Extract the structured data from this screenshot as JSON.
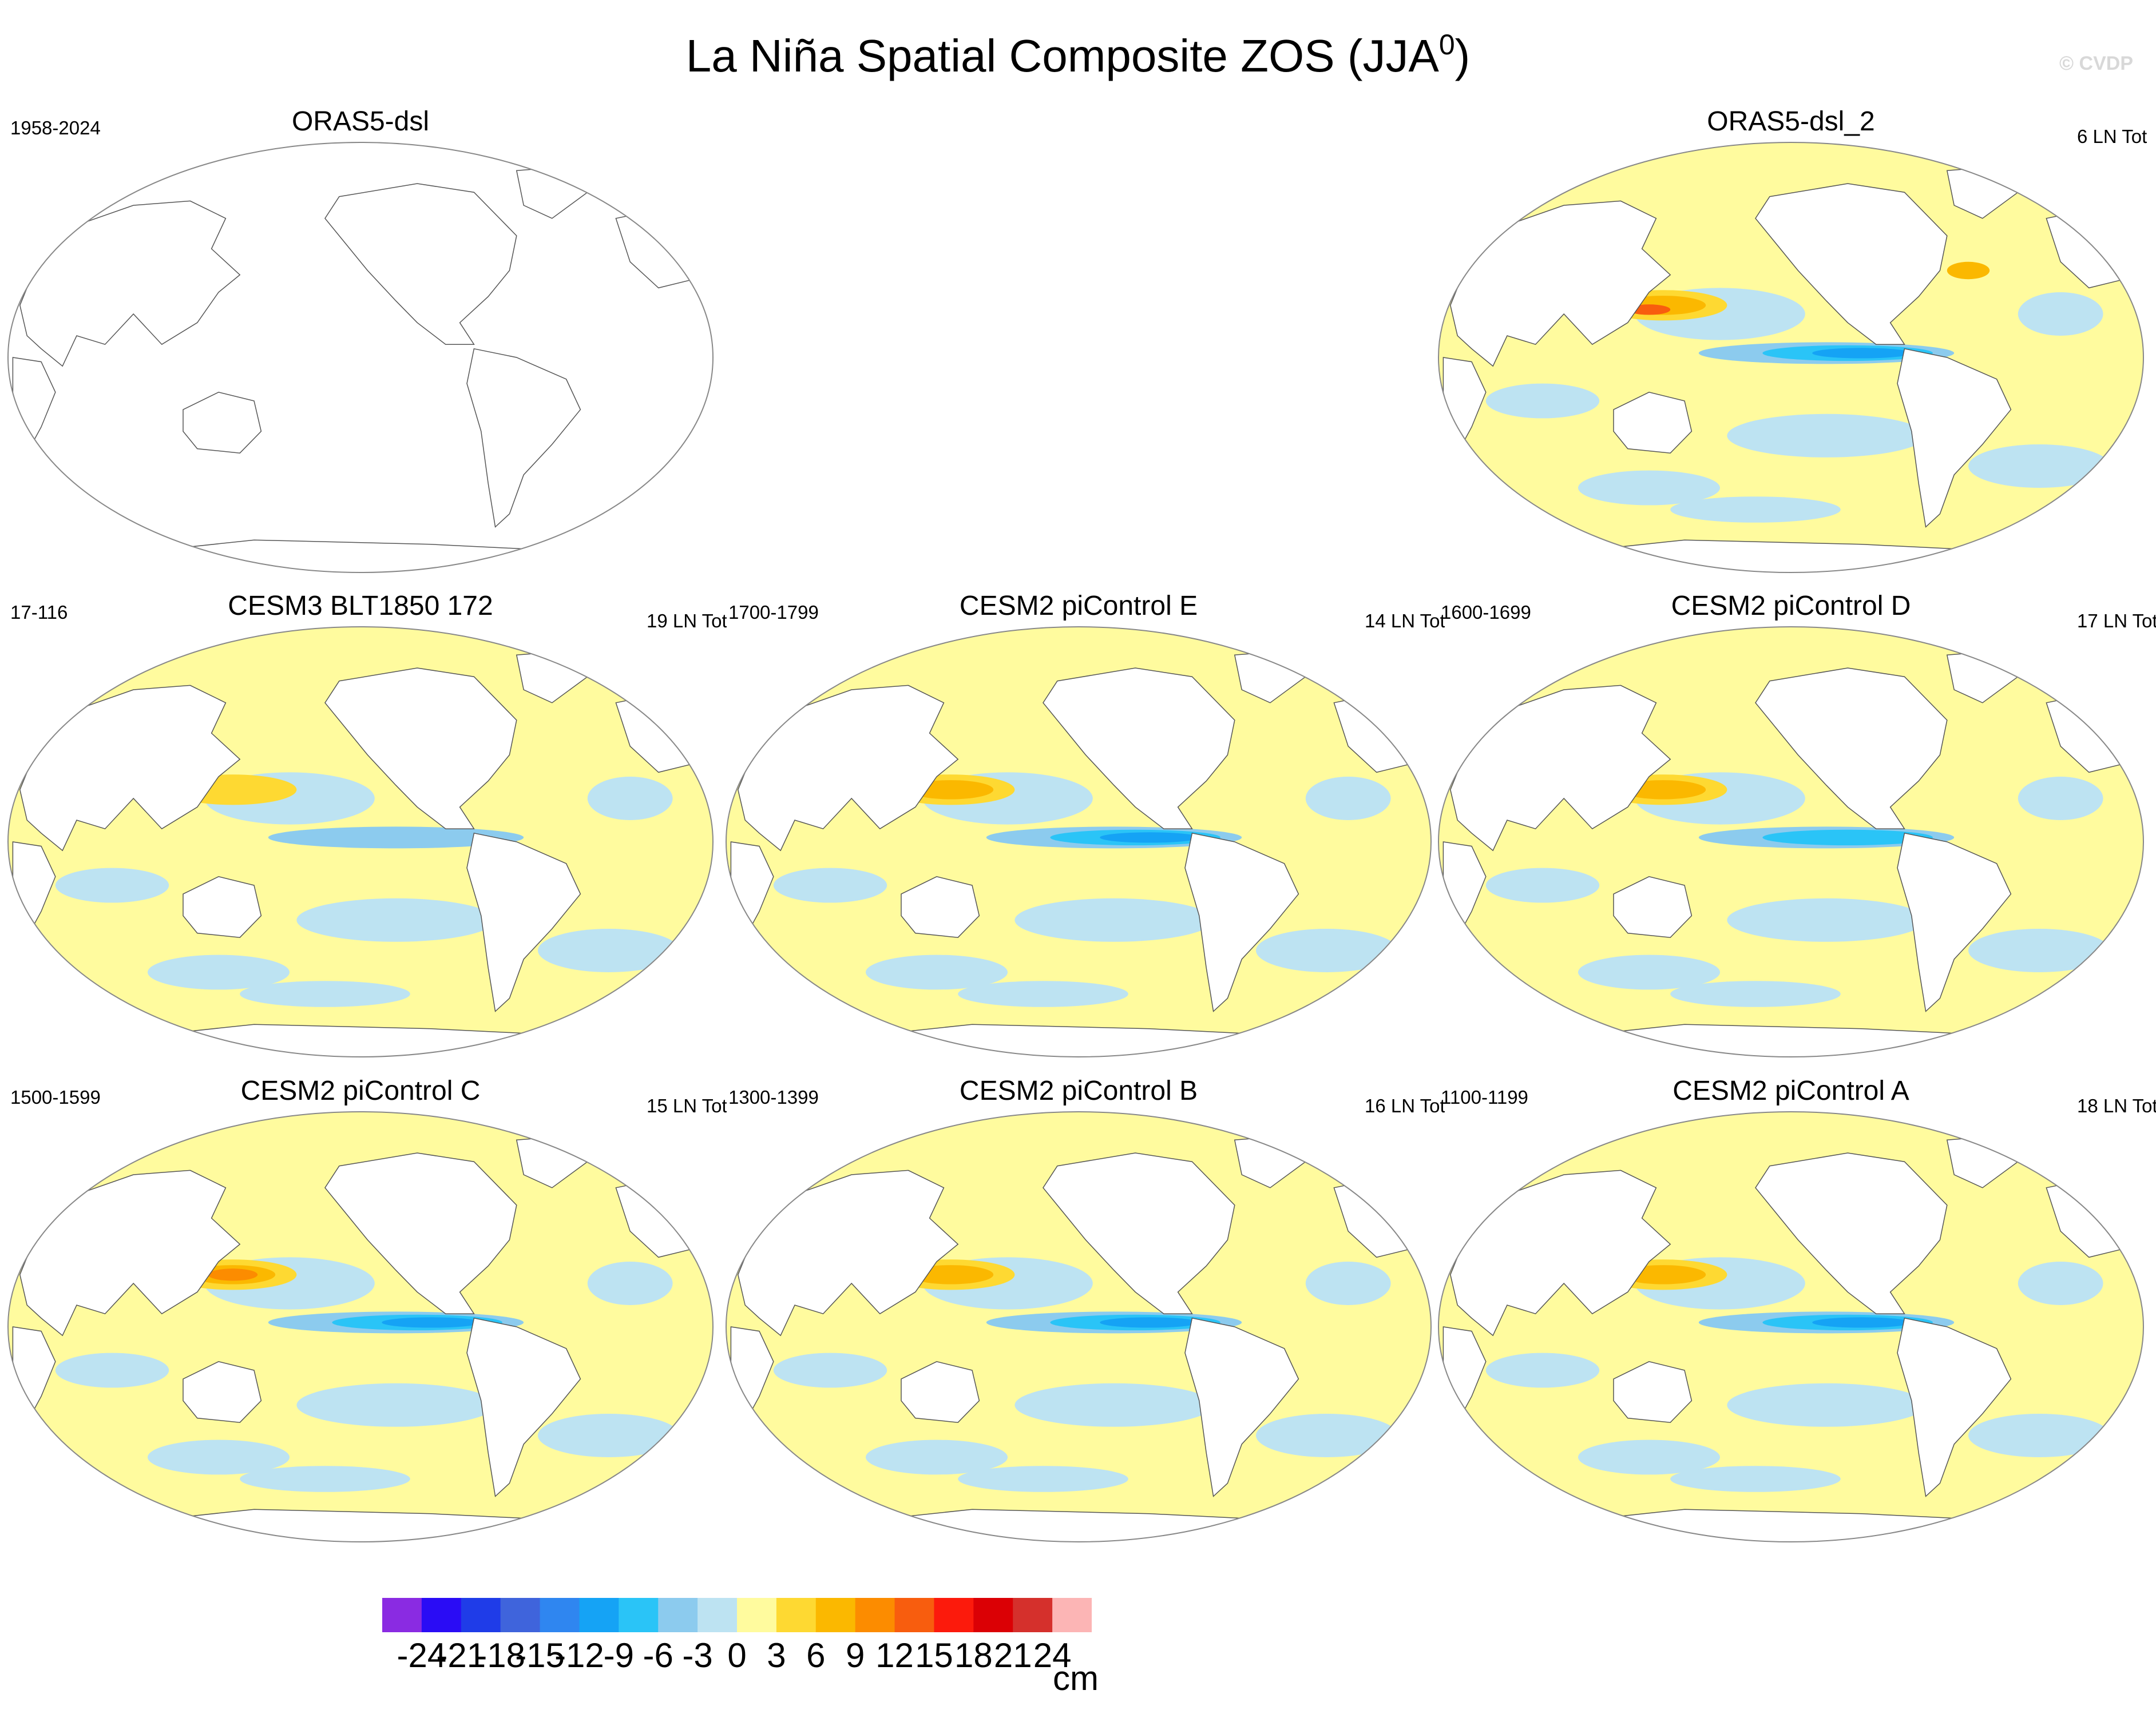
{
  "title": "La Niña Spatial Composite ZOS (JJA",
  "title_sup": "0",
  "title_close": ")",
  "watermark": "© CVDP",
  "panels": [
    {
      "title": "ORAS5-dsl",
      "left": "1958-2024",
      "right": "",
      "empty": true
    },
    {
      "title": "ORAS5-dsl_2",
      "left": "",
      "right": "6 LN Tot",
      "empty": false
    },
    {
      "title": "CESM3 BLT1850 172",
      "left": "17-116",
      "right": "19 LN Tot",
      "empty": false
    },
    {
      "title": "CESM2 piControl E",
      "left": "1700-1799",
      "right": "14 LN Tot",
      "empty": false
    },
    {
      "title": "CESM2 piControl D",
      "left": "1600-1699",
      "right": "17 LN Tot",
      "empty": false
    },
    {
      "title": "CESM2 piControl C",
      "left": "1500-1599",
      "right": "15 LN Tot",
      "empty": false
    },
    {
      "title": "CESM2 piControl B",
      "left": "1300-1399",
      "right": "16 LN Tot",
      "empty": false
    },
    {
      "title": "CESM2 piControl A",
      "left": "1100-1199",
      "right": "18 LN Tot",
      "empty": false
    }
  ],
  "colorbar": {
    "units": "cm",
    "labels": [
      "-24",
      "-21",
      "-18",
      "-15",
      "-12",
      "-9",
      "-6",
      "-3",
      "0",
      "3",
      "6",
      "9",
      "12",
      "15",
      "18",
      "21",
      "24"
    ],
    "colors": [
      "#8a2be2",
      "#2a0cf5",
      "#1f3ce8",
      "#3f64dc",
      "#2f86f0",
      "#15a3f5",
      "#2ac4f7",
      "#8ccbee",
      "#bde3f2",
      "#fffb9e",
      "#fed932",
      "#fbb800",
      "#fc8c00",
      "#f85d0e",
      "#fc1a0c",
      "#db0005",
      "#d5302c",
      "#fcb5b5"
    ]
  },
  "chart_data": {
    "type": "heatmap",
    "title": "La Niña Spatial Composite ZOS (JJA0)",
    "units": "cm",
    "levels": [
      -24,
      -21,
      -18,
      -15,
      -12,
      -9,
      -6,
      -3,
      0,
      3,
      6,
      9,
      12,
      15,
      18,
      21,
      24
    ],
    "panels": [
      {
        "name": "ORAS5-dsl",
        "period": "1958-2024",
        "count": "",
        "data": "none"
      },
      {
        "name": "ORAS5-dsl_2",
        "period": "",
        "count": "6 LN Tot",
        "eq_pacific_min": -12,
        "w_pacific_max": 12
      },
      {
        "name": "CESM3 BLT1850 172",
        "period": "17-116",
        "count": "19 LN Tot",
        "eq_pacific_min": -6,
        "w_pacific_max": 3
      },
      {
        "name": "CESM2 piControl E",
        "period": "1700-1799",
        "count": "14 LN Tot",
        "eq_pacific_min": -12,
        "w_pacific_max": 6
      },
      {
        "name": "CESM2 piControl D",
        "period": "1600-1699",
        "count": "17 LN Tot",
        "eq_pacific_min": -9,
        "w_pacific_max": 6
      },
      {
        "name": "CESM2 piControl C",
        "period": "1500-1599",
        "count": "15 LN Tot",
        "eq_pacific_min": -15,
        "w_pacific_max": 12
      },
      {
        "name": "CESM2 piControl B",
        "period": "1300-1399",
        "count": "16 LN Tot",
        "eq_pacific_min": -12,
        "w_pacific_max": 9
      },
      {
        "name": "CESM2 piControl A",
        "period": "1100-1199",
        "count": "18 LN Tot",
        "eq_pacific_min": -9,
        "w_pacific_max": 12
      }
    ]
  }
}
